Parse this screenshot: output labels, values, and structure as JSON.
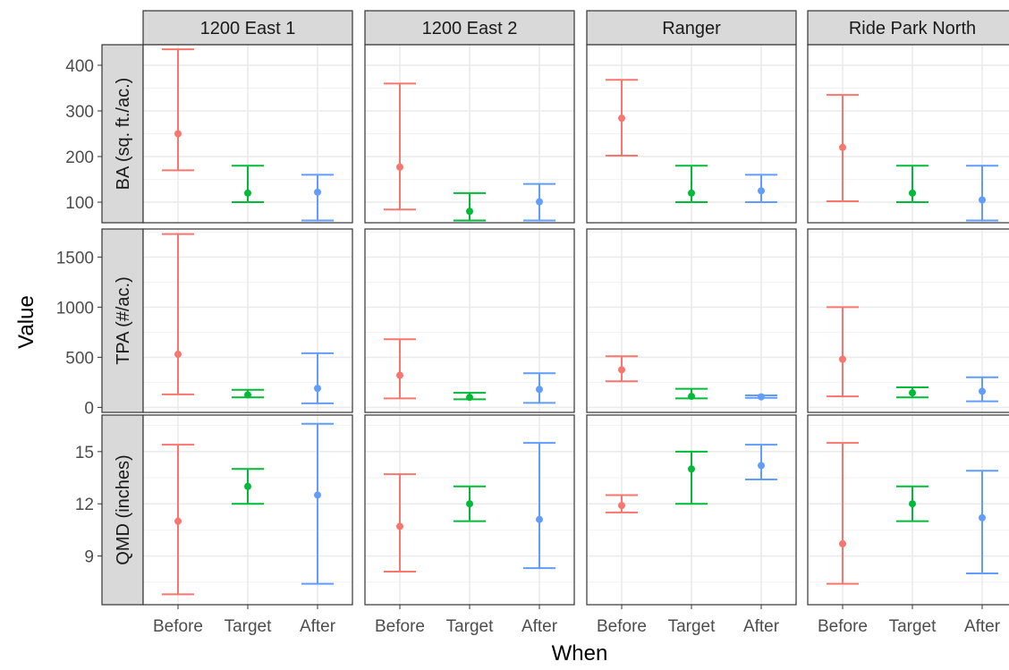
{
  "chart_data": {
    "type": "errorbar",
    "xlabel": "When",
    "ylabel": "Value",
    "categories": [
      "Before",
      "Target",
      "After"
    ],
    "category_colors": [
      "#F8766D",
      "#00BA38",
      "#619CFF"
    ],
    "theme": {
      "strip_fill": "#D9D9D9",
      "panel_border": "#333333",
      "grid_color": "#EBEBEB",
      "tick_text_color": "#4D4D4D",
      "axis_text_color": "#000000"
    },
    "grid": true,
    "columns": [
      "1200 East 1",
      "1200 East 2",
      "Ranger",
      "Ride Park North"
    ],
    "rows": [
      {
        "label": "BA (sq. ft./ac.)",
        "ylim": [
          55,
          445
        ],
        "yticks": [
          100,
          200,
          300,
          400
        ],
        "tick_labels": [
          "100",
          "200",
          "300",
          "400"
        ]
      },
      {
        "label": "TPA (#/ac.)",
        "ylim": [
          -50,
          1780
        ],
        "yticks": [
          0,
          500,
          1000,
          1500
        ],
        "tick_labels": [
          "0",
          "500",
          "1000",
          "1500"
        ]
      },
      {
        "label": "QMD (inches)",
        "ylim": [
          6.2,
          17.1
        ],
        "yticks": [
          9,
          12,
          15
        ],
        "tick_labels": [
          "9",
          "12",
          "15"
        ]
      }
    ],
    "panels": [
      [
        {
          "points": [
            {
              "x": "Before",
              "y": 250,
              "low": 170,
              "high": 435
            },
            {
              "x": "Target",
              "y": 120,
              "low": 100,
              "high": 180
            },
            {
              "x": "After",
              "y": 122,
              "low": 60,
              "high": 160
            }
          ]
        },
        {
          "points": [
            {
              "x": "Before",
              "y": 177,
              "low": 84,
              "high": 360
            },
            {
              "x": "Target",
              "y": 80,
              "low": 60,
              "high": 120
            },
            {
              "x": "After",
              "y": 101,
              "low": 60,
              "high": 140
            }
          ]
        },
        {
          "points": [
            {
              "x": "Before",
              "y": 284,
              "low": 202,
              "high": 368
            },
            {
              "x": "Target",
              "y": 120,
              "low": 100,
              "high": 180
            },
            {
              "x": "After",
              "y": 125,
              "low": 100,
              "high": 160
            }
          ]
        },
        {
          "points": [
            {
              "x": "Before",
              "y": 220,
              "low": 102,
              "high": 335
            },
            {
              "x": "Target",
              "y": 120,
              "low": 100,
              "high": 180
            },
            {
              "x": "After",
              "y": 105,
              "low": 60,
              "high": 180
            }
          ]
        }
      ],
      [
        {
          "points": [
            {
              "x": "Before",
              "y": 530,
              "low": 130,
              "high": 1730
            },
            {
              "x": "Target",
              "y": 125,
              "low": 100,
              "high": 175
            },
            {
              "x": "After",
              "y": 190,
              "low": 40,
              "high": 540
            }
          ]
        },
        {
          "points": [
            {
              "x": "Before",
              "y": 320,
              "low": 90,
              "high": 680
            },
            {
              "x": "Target",
              "y": 100,
              "low": 80,
              "high": 145
            },
            {
              "x": "After",
              "y": 180,
              "low": 45,
              "high": 340
            }
          ]
        },
        {
          "points": [
            {
              "x": "Before",
              "y": 375,
              "low": 260,
              "high": 510
            },
            {
              "x": "Target",
              "y": 110,
              "low": 90,
              "high": 185
            },
            {
              "x": "After",
              "y": 105,
              "low": 95,
              "high": 120
            }
          ]
        },
        {
          "points": [
            {
              "x": "Before",
              "y": 480,
              "low": 110,
              "high": 1000
            },
            {
              "x": "Target",
              "y": 145,
              "low": 100,
              "high": 200
            },
            {
              "x": "After",
              "y": 160,
              "low": 60,
              "high": 300
            }
          ]
        }
      ],
      [
        {
          "points": [
            {
              "x": "Before",
              "y": 11.0,
              "low": 6.8,
              "high": 15.4
            },
            {
              "x": "Target",
              "y": 13.0,
              "low": 12.0,
              "high": 14.0
            },
            {
              "x": "After",
              "y": 12.5,
              "low": 7.4,
              "high": 16.6
            }
          ]
        },
        {
          "points": [
            {
              "x": "Before",
              "y": 10.7,
              "low": 8.1,
              "high": 13.7
            },
            {
              "x": "Target",
              "y": 12.0,
              "low": 11.0,
              "high": 13.0
            },
            {
              "x": "After",
              "y": 11.1,
              "low": 8.3,
              "high": 15.5
            }
          ]
        },
        {
          "points": [
            {
              "x": "Before",
              "y": 11.9,
              "low": 11.5,
              "high": 12.5
            },
            {
              "x": "Target",
              "y": 14.0,
              "low": 12.0,
              "high": 15.0
            },
            {
              "x": "After",
              "y": 14.2,
              "low": 13.4,
              "high": 15.4
            }
          ]
        },
        {
          "points": [
            {
              "x": "Before",
              "y": 9.7,
              "low": 7.4,
              "high": 15.5
            },
            {
              "x": "Target",
              "y": 12.0,
              "low": 11.0,
              "high": 13.0
            },
            {
              "x": "After",
              "y": 11.2,
              "low": 8.0,
              "high": 13.9
            }
          ]
        }
      ]
    ]
  }
}
